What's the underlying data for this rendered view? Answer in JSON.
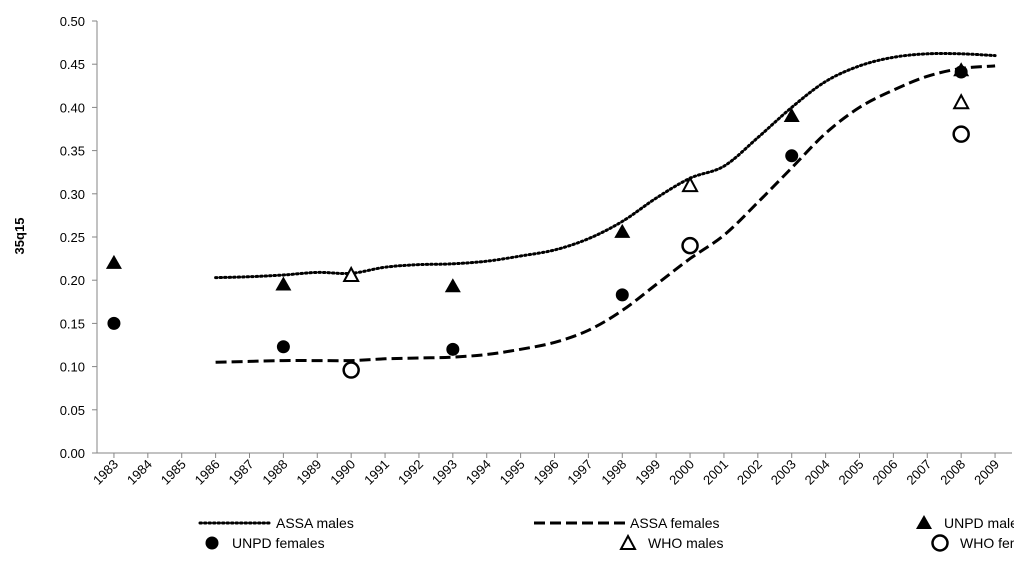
{
  "chart_data": {
    "type": "line",
    "ylabel": "35q15",
    "xlabel": "",
    "ylim": [
      0,
      0.5
    ],
    "yticks": [
      "0.00",
      "0.05",
      "0.10",
      "0.15",
      "0.20",
      "0.25",
      "0.30",
      "0.35",
      "0.40",
      "0.45",
      "0.50"
    ],
    "categories": [
      "1983",
      "1984",
      "1985",
      "1986",
      "1987",
      "1988",
      "1989",
      "1990",
      "1991",
      "1992",
      "1993",
      "1994",
      "1995",
      "1996",
      "1997",
      "1998",
      "1999",
      "2000",
      "2001",
      "2002",
      "2003",
      "2004",
      "2005",
      "2006",
      "2007",
      "2008",
      "2009"
    ],
    "grid": false,
    "legend_position": "bottom",
    "series": [
      {
        "name": "ASSA males",
        "type": "line",
        "style": "dotted",
        "color": "#000000",
        "x": [
          1986,
          1987,
          1988,
          1989,
          1990,
          1991,
          1992,
          1993,
          1994,
          1995,
          1996,
          1997,
          1998,
          1999,
          2000,
          2001,
          2002,
          2003,
          2004,
          2005,
          2006,
          2007,
          2008,
          2009
        ],
        "values": [
          0.203,
          0.204,
          0.206,
          0.209,
          0.208,
          0.215,
          0.218,
          0.219,
          0.222,
          0.228,
          0.235,
          0.248,
          0.268,
          0.295,
          0.318,
          0.332,
          0.365,
          0.4,
          0.43,
          0.448,
          0.458,
          0.462,
          0.462,
          0.46
        ]
      },
      {
        "name": "ASSA females",
        "type": "line",
        "style": "dashed",
        "color": "#000000",
        "x": [
          1986,
          1987,
          1988,
          1989,
          1990,
          1991,
          1992,
          1993,
          1994,
          1995,
          1996,
          1997,
          1998,
          1999,
          2000,
          2001,
          2002,
          2003,
          2004,
          2005,
          2006,
          2007,
          2008,
          2009
        ],
        "values": [
          0.105,
          0.106,
          0.107,
          0.107,
          0.107,
          0.109,
          0.11,
          0.111,
          0.114,
          0.12,
          0.128,
          0.142,
          0.165,
          0.195,
          0.225,
          0.252,
          0.29,
          0.33,
          0.37,
          0.4,
          0.42,
          0.436,
          0.445,
          0.448
        ]
      },
      {
        "name": "UNPD males",
        "type": "scatter",
        "marker": "filled-triangle",
        "color": "#000000",
        "x": [
          1983,
          1988,
          1993,
          1998,
          2003,
          2008
        ],
        "values": [
          0.22,
          0.195,
          0.193,
          0.256,
          0.39,
          0.443
        ]
      },
      {
        "name": "UNPD females",
        "type": "scatter",
        "marker": "filled-circle",
        "color": "#000000",
        "x": [
          1983,
          1988,
          1993,
          1998,
          2003,
          2008
        ],
        "values": [
          0.15,
          0.123,
          0.12,
          0.183,
          0.344,
          0.441
        ]
      },
      {
        "name": "WHO males",
        "type": "scatter",
        "marker": "open-triangle",
        "color": "#000000",
        "x": [
          1990,
          2000,
          2008
        ],
        "values": [
          0.206,
          0.31,
          0.406
        ]
      },
      {
        "name": "WHO females",
        "type": "scatter",
        "marker": "open-circle",
        "color": "#000000",
        "x": [
          1990,
          2000,
          2008
        ],
        "values": [
          0.096,
          0.24,
          0.369
        ]
      }
    ]
  }
}
